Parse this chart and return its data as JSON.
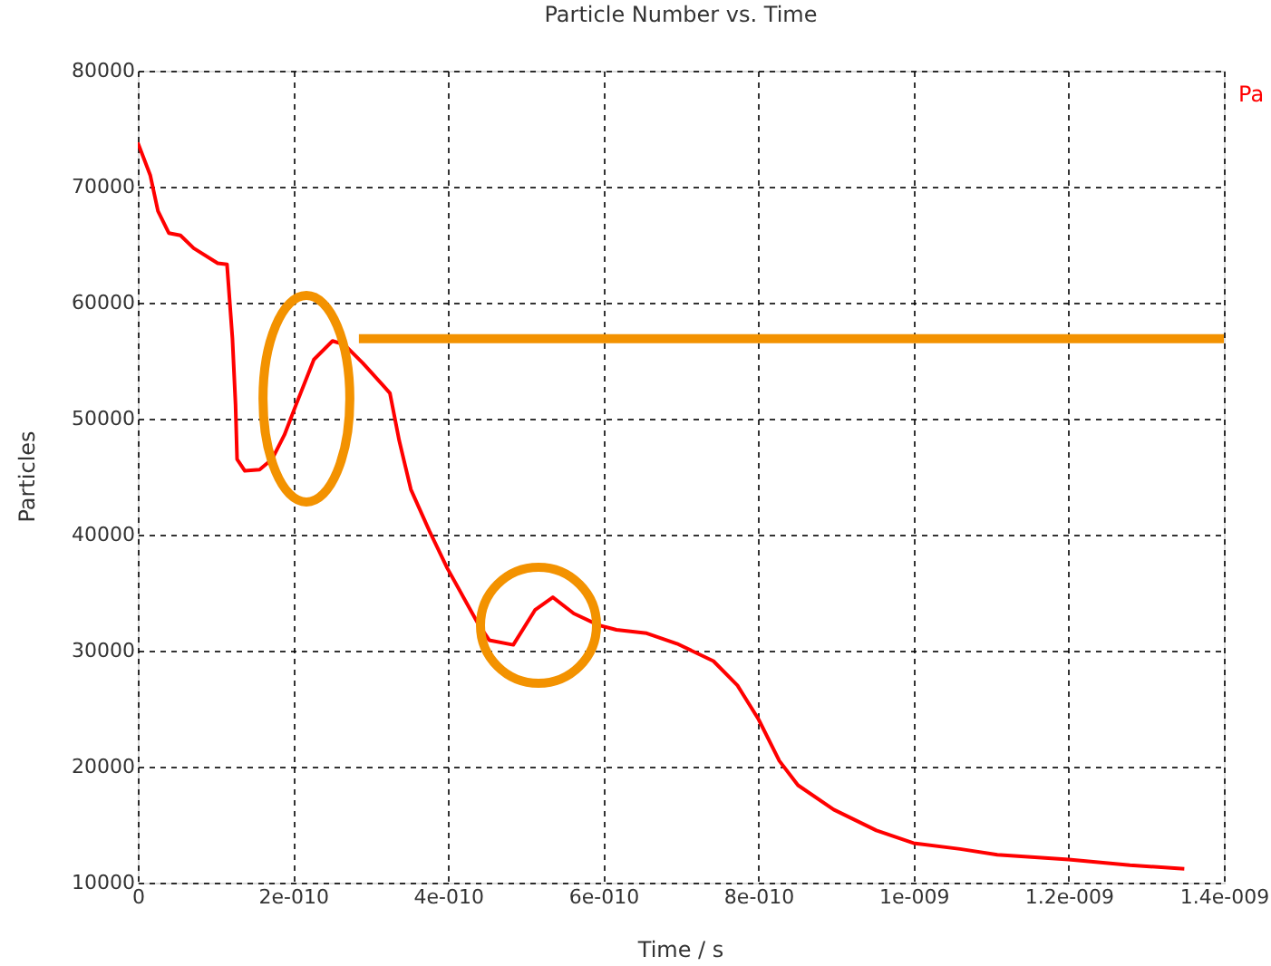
{
  "chart_data": {
    "type": "line",
    "title": "Particle Number vs. Time",
    "xlabel": "Time / s",
    "ylabel": "Particles",
    "xlim": [
      0,
      1.4e-09
    ],
    "ylim": [
      10000,
      80000
    ],
    "xticks": [
      0,
      {
        "value": 2e-10,
        "label": "2e-010"
      },
      {
        "value": 4e-10,
        "label": "4e-010"
      },
      {
        "value": 6e-10,
        "label": "6e-010"
      },
      {
        "value": 8e-10,
        "label": "8e-010"
      },
      {
        "value": 1e-09,
        "label": "1e-009"
      },
      {
        "value": 1.2e-09,
        "label": "1.2e-009"
      },
      {
        "value": 1.4e-09,
        "label": "1.4e-009"
      }
    ],
    "yticks": [
      10000,
      20000,
      30000,
      40000,
      50000,
      60000,
      70000,
      80000
    ],
    "grid": true,
    "legend": "top right",
    "marker": "none",
    "line_style": "solid",
    "series": [
      {
        "name": "Pa",
        "color": "#ff0000",
        "x": [
          0,
          1.6e-11,
          2.6e-11,
          4e-11,
          5.5e-11,
          7.2e-11,
          1.03e-10,
          1.15e-10,
          1.22e-10,
          1.26e-10,
          1.28e-10,
          1.38e-10,
          1.57e-10,
          1.73e-10,
          1.89e-10,
          2.04e-10,
          2.27e-10,
          2.51e-10,
          2.66e-10,
          2.9e-10,
          3.17e-10,
          3.25e-10,
          3.37e-10,
          3.52e-10,
          3.76e-10,
          3.99e-10,
          4.38e-10,
          4.53e-10,
          4.84e-10,
          5.12e-10,
          5.35e-10,
          5.62e-10,
          5.94e-10,
          6.17e-10,
          6.56e-10,
          6.95e-10,
          7.42e-10,
          7.73e-10,
          8e-10,
          8.27e-10,
          8.51e-10,
          8.97e-10,
          9.52e-10,
          1e-09,
          1.06e-09,
          1.108e-09,
          1.2e-09,
          1.279e-09,
          1.349e-09
        ],
        "values": [
          73800,
          71000,
          67900,
          66000,
          65800,
          64700,
          63400,
          63300,
          56900,
          51200,
          46500,
          45500,
          45600,
          46500,
          48600,
          51200,
          55100,
          56700,
          56400,
          54800,
          52800,
          52200,
          48100,
          43900,
          40300,
          37100,
          32400,
          30900,
          30500,
          33500,
          34600,
          33200,
          32200,
          31800,
          31500,
          30600,
          29100,
          27000,
          24100,
          20500,
          18400,
          16300,
          14500,
          13400,
          12900,
          12400,
          12000,
          11500,
          11200
        ]
      },
      {
        "type": "line",
        "color": "#f39200",
        "x": [
          2.85e-10,
          1.4e-09
        ],
        "values": [
          56900,
          56900
        ]
      }
    ]
  }
}
